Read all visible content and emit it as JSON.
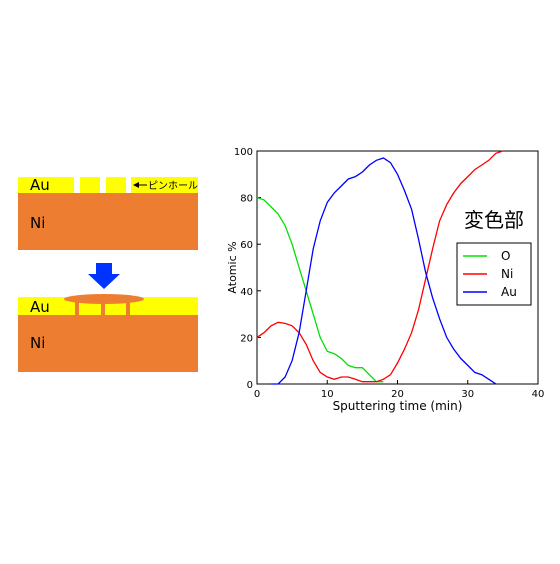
{
  "diagram": {
    "top": {
      "au": "Au",
      "ni": "Ni",
      "pinhole": "ピンホール"
    },
    "bottom": {
      "au": "Au",
      "ni": "Ni"
    }
  },
  "chart_data": {
    "type": "line",
    "annotation": "変色部",
    "x_label": "Sputtering time (min)",
    "y_label": "Atomic %",
    "x": [
      0,
      1,
      2,
      3,
      4,
      5,
      6,
      7,
      8,
      9,
      10,
      11,
      12,
      13,
      14,
      15,
      16,
      17,
      18,
      19,
      20,
      21,
      22,
      23,
      24,
      25,
      26,
      27,
      28,
      29,
      30,
      31,
      32,
      33,
      34,
      35
    ],
    "series": [
      {
        "name": "O",
        "color": "#00e000",
        "values": [
          80,
          79,
          76,
          73,
          68,
          60,
          50,
          40,
          30,
          20,
          14,
          13,
          11,
          8,
          7,
          7,
          4,
          1,
          1,
          null,
          null,
          null,
          null,
          null,
          null,
          null,
          null,
          null,
          null,
          null,
          null,
          null,
          null,
          null,
          null,
          null
        ]
      },
      {
        "name": "Ni",
        "color": "#ff0000",
        "values": [
          20,
          22,
          25,
          26.5,
          26,
          25,
          22,
          17,
          10,
          5,
          3,
          2,
          3,
          3,
          2,
          1,
          1,
          1,
          2,
          4,
          9,
          15,
          22,
          32,
          45,
          58,
          70,
          77,
          82,
          86,
          89,
          92,
          94,
          96,
          99,
          100
        ]
      },
      {
        "name": "Au",
        "color": "#0000ff",
        "values": [
          null,
          null,
          0,
          0,
          3,
          10,
          22,
          40,
          58,
          70,
          78,
          82,
          85,
          88,
          89,
          91,
          94,
          96,
          97,
          95,
          90,
          83,
          75,
          62,
          48,
          37,
          28,
          20,
          15,
          11,
          8,
          5,
          4,
          2,
          0,
          null
        ]
      }
    ],
    "xlim": [
      0,
      40
    ],
    "xticks": [
      0,
      10,
      20,
      30,
      40
    ],
    "ylim": [
      0,
      100
    ],
    "yticks": [
      0,
      20,
      40,
      60,
      80,
      100
    ],
    "legend": "right"
  }
}
